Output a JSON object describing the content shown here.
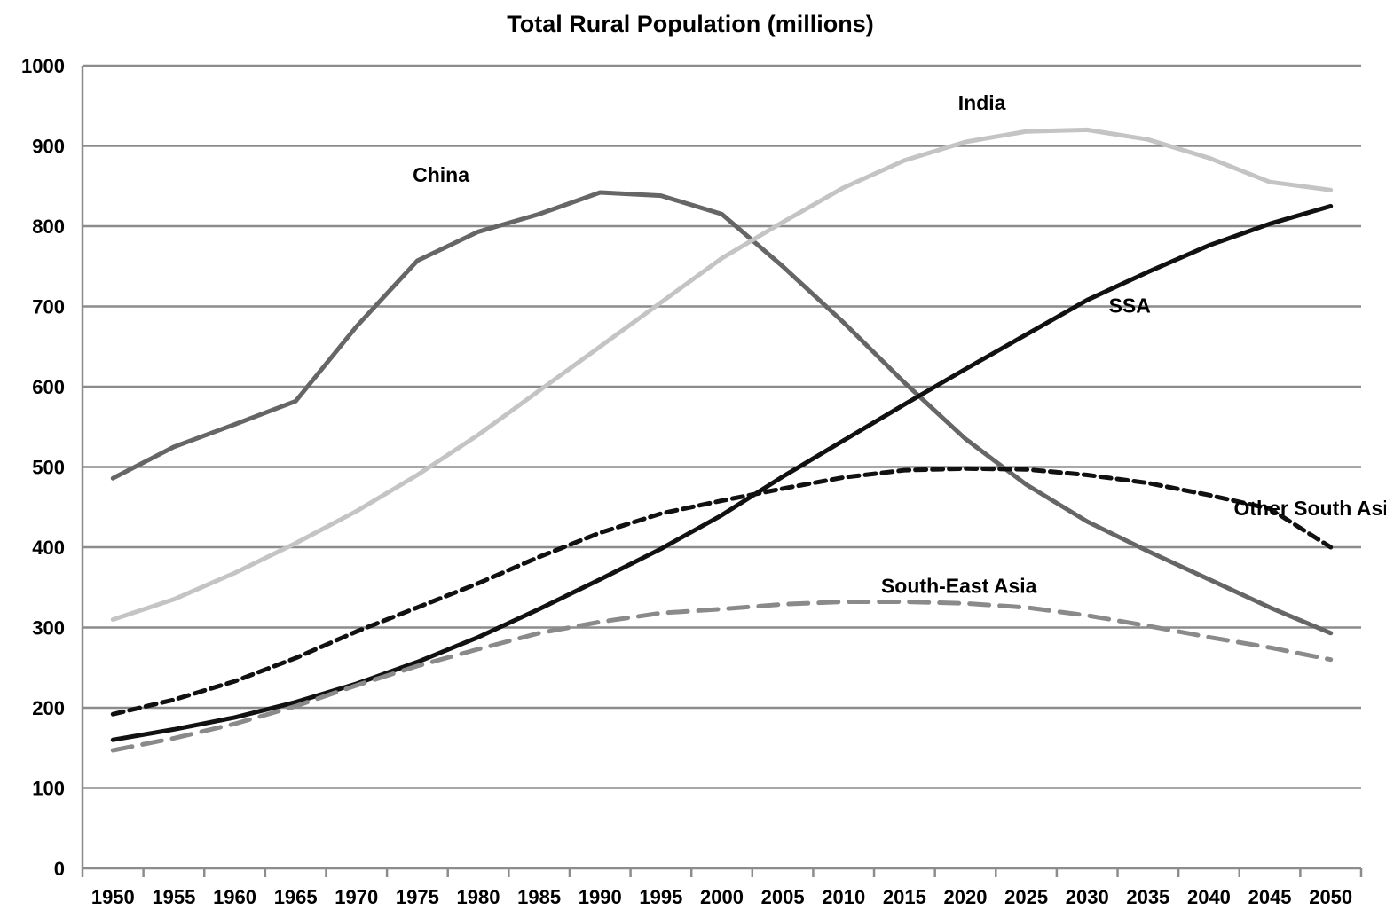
{
  "chart_data": {
    "type": "line",
    "title": "Total Rural Population (millions)",
    "xlabel": "",
    "ylabel": "",
    "ylim": [
      0,
      1000
    ],
    "yticks": [
      "0",
      "100",
      "200",
      "300",
      "400",
      "500",
      "600",
      "700",
      "800",
      "900",
      "1000"
    ],
    "x": [
      "1950",
      "1955",
      "1960",
      "1965",
      "1970",
      "1975",
      "1980",
      "1985",
      "1990",
      "1995",
      "2000",
      "2005",
      "2010",
      "2015",
      "2020",
      "2025",
      "2030",
      "2035",
      "2040",
      "2045",
      "2050"
    ],
    "grid": true,
    "legend": "inline labels",
    "series": [
      {
        "name": "China",
        "color": "#666666",
        "dash": "solid",
        "values": [
          486,
          525,
          553,
          582,
          675,
          757,
          793,
          815,
          842,
          838,
          815,
          750,
          680,
          605,
          535,
          478,
          432,
          395,
          360,
          325,
          293
        ]
      },
      {
        "name": "India",
        "color": "#c4c4c4",
        "dash": "solid",
        "values": [
          310,
          335,
          368,
          405,
          445,
          490,
          540,
          595,
          650,
          705,
          760,
          805,
          848,
          882,
          905,
          918,
          920,
          908,
          885,
          855,
          845
        ]
      },
      {
        "name": "SSA",
        "color": "#111111",
        "dash": "solid",
        "values": [
          160,
          173,
          188,
          207,
          230,
          257,
          288,
          323,
          360,
          398,
          440,
          488,
          533,
          578,
          622,
          665,
          708,
          743,
          776,
          803,
          825
        ]
      },
      {
        "name": "Other South Asia",
        "color": "#111111",
        "dash": "dash-short",
        "values": [
          192,
          210,
          233,
          262,
          295,
          325,
          355,
          388,
          418,
          442,
          458,
          473,
          487,
          496,
          498,
          497,
          490,
          480,
          465,
          448,
          400
        ]
      },
      {
        "name": "South-East Asia",
        "color": "#8a8a8a",
        "dash": "dash-long",
        "values": [
          147,
          162,
          180,
          202,
          228,
          252,
          273,
          293,
          307,
          318,
          323,
          329,
          332,
          332,
          330,
          325,
          315,
          302,
          288,
          275,
          260
        ]
      }
    ]
  }
}
